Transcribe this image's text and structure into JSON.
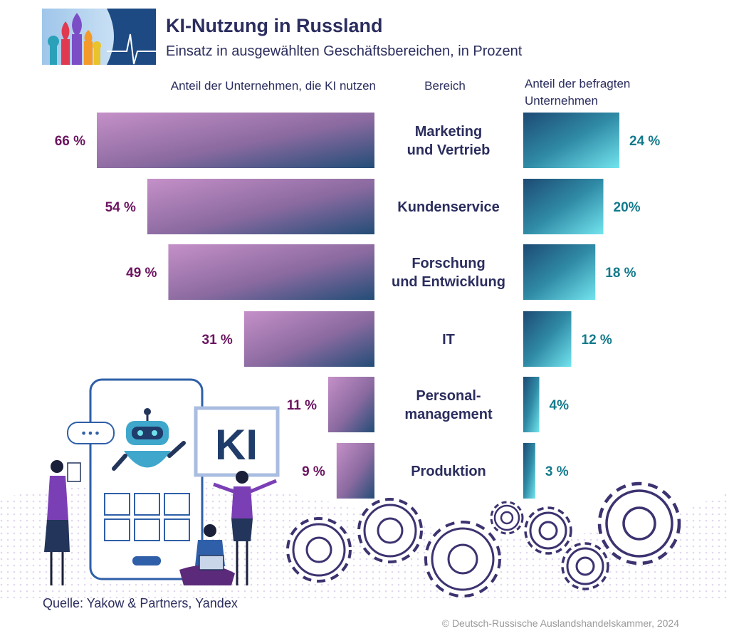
{
  "header": {
    "title": "KI-Nutzung in Russland",
    "subtitle": "Einsatz in ausgewählten Geschäftsbereichen, in Prozent"
  },
  "chart_data": {
    "type": "bar",
    "column_headers": {
      "left": "Anteil der Unternehmen, die KI nutzen",
      "center": "Bereich",
      "right_line1": "Anteil der befragten",
      "right_line2": "Unternehmen"
    },
    "categories": [
      [
        "Marketing",
        "und Vertrieb"
      ],
      [
        "Kundenservice"
      ],
      [
        "Forschung",
        "und Entwicklung"
      ],
      [
        "IT"
      ],
      [
        "Personal-",
        "management"
      ],
      [
        "Produktion"
      ]
    ],
    "series": [
      {
        "values": [
          66,
          54,
          49,
          31,
          11,
          9
        ],
        "labels": [
          "66 %",
          "54 %",
          "49 %",
          "31 %",
          "11 %",
          "9 %"
        ]
      },
      {
        "values": [
          24,
          20,
          18,
          12,
          4,
          3
        ],
        "labels": [
          "24 %",
          "20%",
          "18 %",
          "12 %",
          "4%",
          "3 %"
        ]
      }
    ],
    "colors": {
      "left_start": "#c28fc6",
      "left_end": "#244e78",
      "left_label": "#6b1461",
      "right_start": "#1f4f78",
      "right_end": "#6fe0ea",
      "right_label": "#137a8c",
      "category": "#2b2d5e"
    }
  },
  "illustration": {
    "screen_text": "KI",
    "bubble_text": "•••"
  },
  "footer": {
    "source": "Quelle: Yakow & Partners, Yandex",
    "copyright": "© Deutsch-Russische Auslandshandelskammer, 2024"
  }
}
